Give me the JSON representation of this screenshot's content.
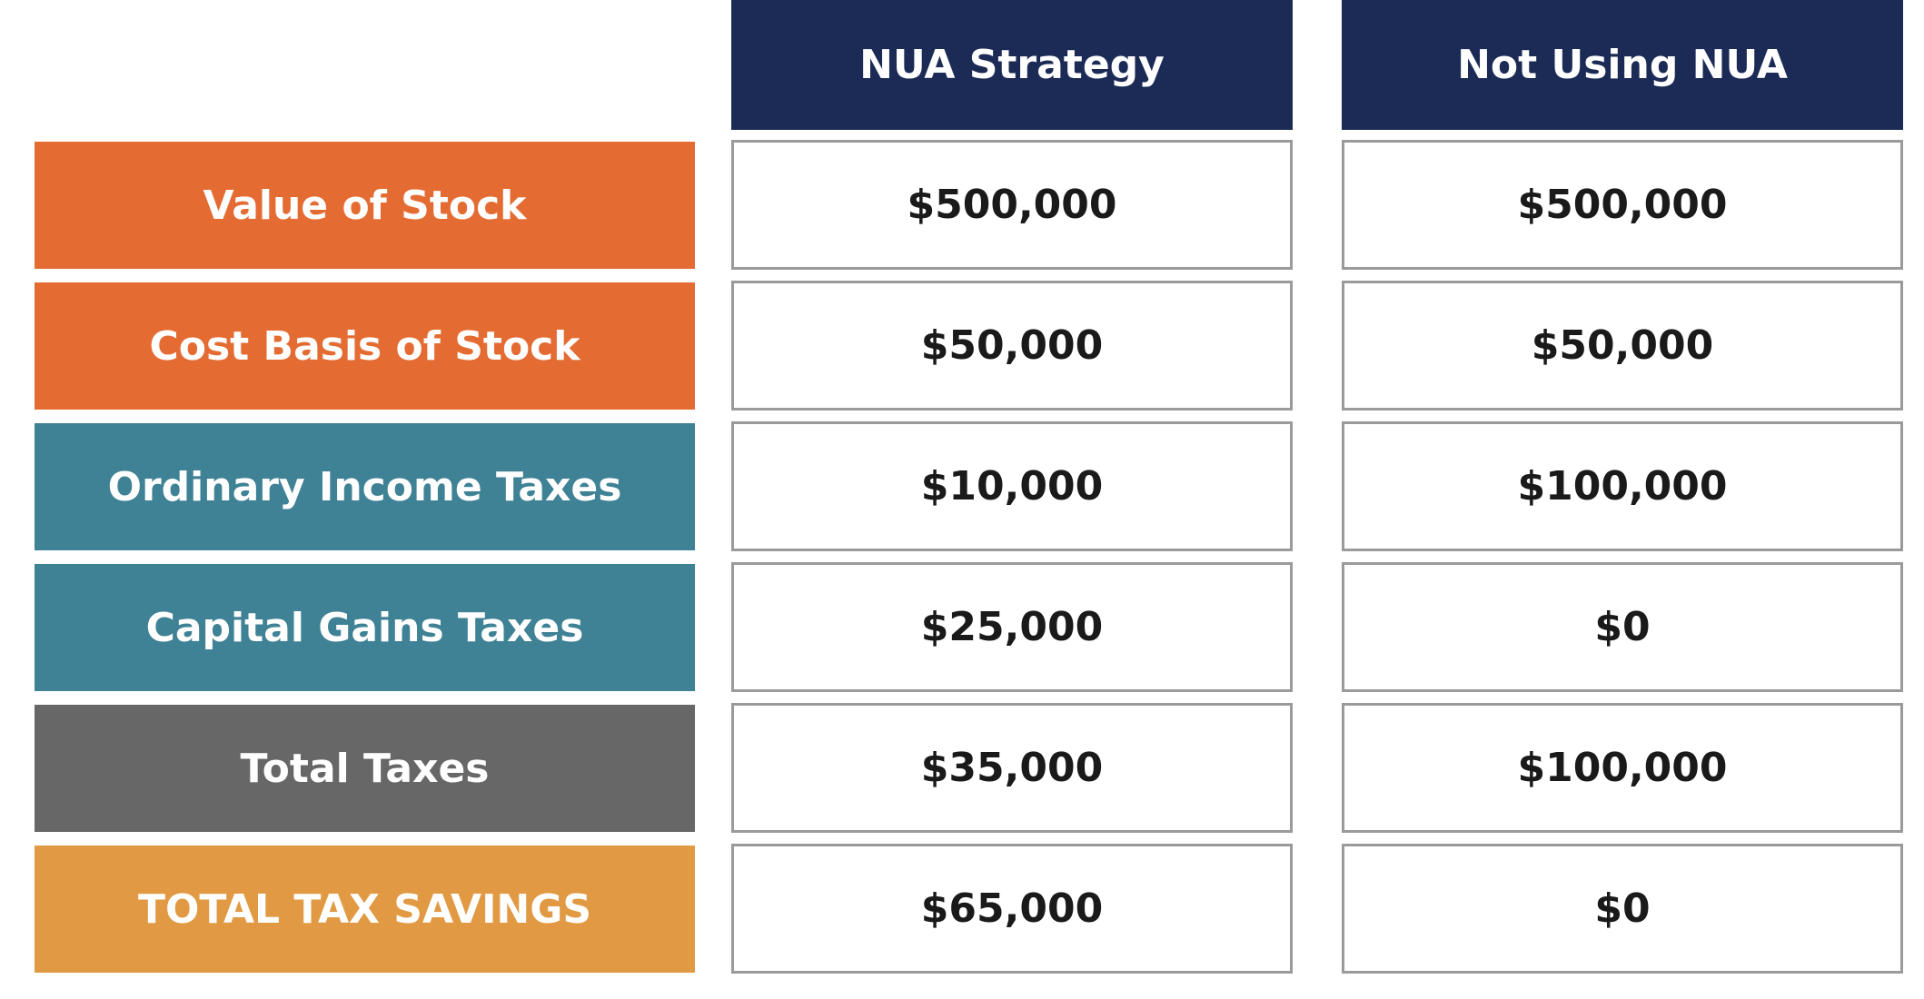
{
  "table": {
    "columns": [
      "NUA Strategy",
      "Not Using NUA"
    ],
    "rows": [
      {
        "label": "Value of Stock",
        "cells": [
          "$500,000",
          "$500,000"
        ]
      },
      {
        "label": "Cost Basis of Stock",
        "cells": [
          "$50,000",
          "$50,000"
        ]
      },
      {
        "label": "Ordinary Income Taxes",
        "cells": [
          "$10,000",
          "$100,000"
        ]
      },
      {
        "label": "Capital Gains Taxes",
        "cells": [
          "$25,000",
          "$0"
        ]
      },
      {
        "label": "Total Taxes",
        "cells": [
          "$35,000",
          "$100,000"
        ]
      },
      {
        "label": "TOTAL TAX SAVINGS",
        "cells": [
          "$65,000",
          "$0"
        ]
      }
    ]
  }
}
